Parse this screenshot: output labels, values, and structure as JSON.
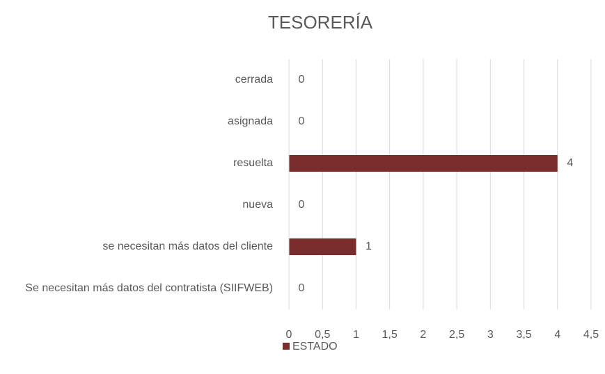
{
  "chart_data": {
    "type": "hbar",
    "title": "TESORERÍA",
    "categories": [
      "cerrada",
      "asignada",
      "resuelta",
      "nueva",
      "se necesitan más datos del cliente",
      "Se necesitan más datos del contratista (SIIFWEB)"
    ],
    "series": [
      {
        "name": "ESTADO",
        "color": "#7b2c2c",
        "values": [
          0,
          0,
          4,
          0,
          1,
          0
        ]
      }
    ],
    "xlim": [
      0,
      4.5
    ],
    "xticks": [
      0,
      {
        "value": 0.5,
        "label": "0,5"
      },
      1,
      {
        "value": 1.5,
        "label": "1,5"
      },
      2,
      {
        "value": 2.5,
        "label": "2,5"
      },
      3,
      {
        "value": 3.5,
        "label": "3,5"
      },
      4,
      {
        "value": 4.5,
        "label": "4,5"
      }
    ],
    "grid": true,
    "legend": "bottom"
  }
}
